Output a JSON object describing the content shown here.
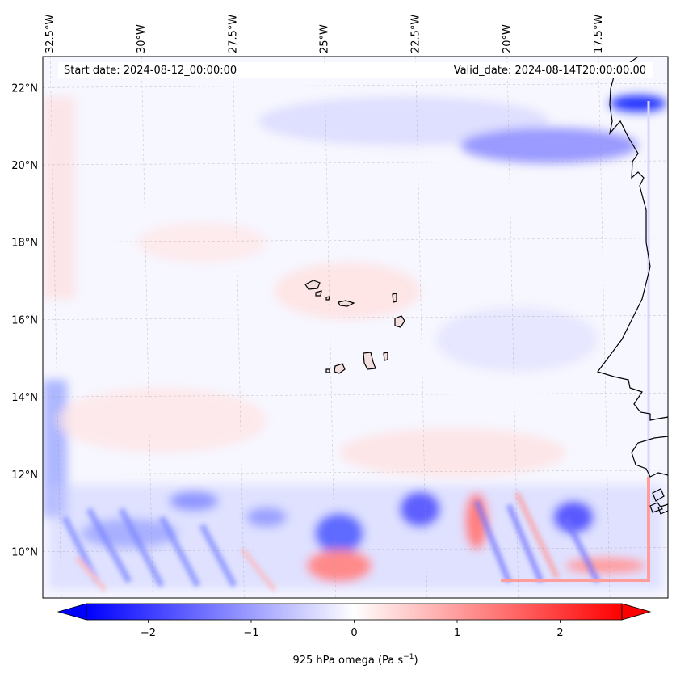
{
  "map": {
    "start_label": "Start date: 2024-08-12_00:00:00",
    "valid_label": "Valid_date: 2024-08-14T20:00:00.00",
    "extent": {
      "lon_min": -32.7,
      "lon_max": -15.6,
      "lat_min": 8.8,
      "lat_max": 22.8
    },
    "lon_ticks": [
      {
        "value": -32.5,
        "label": "32.5°W"
      },
      {
        "value": -30,
        "label": "30°W"
      },
      {
        "value": -27.5,
        "label": "27.5°W"
      },
      {
        "value": -25,
        "label": "25°W"
      },
      {
        "value": -22.5,
        "label": "22.5°W"
      },
      {
        "value": -20,
        "label": "20°W"
      },
      {
        "value": -17.5,
        "label": "17.5°W"
      }
    ],
    "lat_ticks": [
      {
        "value": 22,
        "label": "22°N"
      },
      {
        "value": 20,
        "label": "20°N"
      },
      {
        "value": 18,
        "label": "18°N"
      },
      {
        "value": 16,
        "label": "16°N"
      },
      {
        "value": 14,
        "label": "14°N"
      },
      {
        "value": 12,
        "label": "12°N"
      },
      {
        "value": 10,
        "label": "10°N"
      }
    ],
    "colors": {
      "negative": "#0000ff",
      "neutral": "#ffffff",
      "positive": "#ff0000",
      "coast": "#000000",
      "grid": "#999999"
    }
  },
  "colorbar": {
    "label": "925 hPa omega (Pa s",
    "label_sup": "−1",
    "label_close": ")",
    "vmin": -2.6,
    "vmax": 2.6,
    "ticks": [
      {
        "value": -2,
        "label": "−2"
      },
      {
        "value": -1,
        "label": "−1"
      },
      {
        "value": 0,
        "label": "0"
      },
      {
        "value": 1,
        "label": "1"
      },
      {
        "value": 2,
        "label": "2"
      }
    ]
  }
}
